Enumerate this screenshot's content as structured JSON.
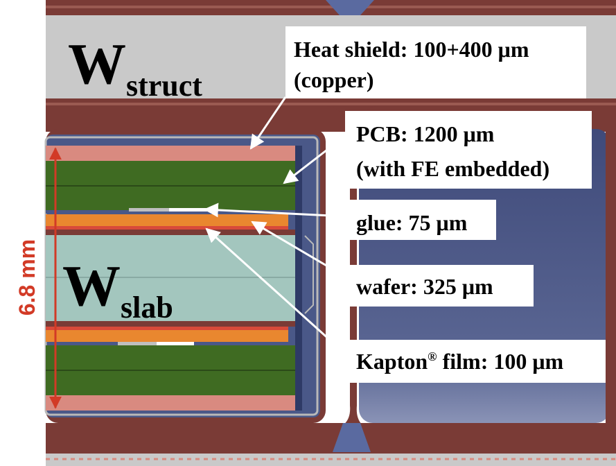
{
  "dimension": {
    "value": "6.8 mm"
  },
  "labels": {
    "w_struct_main": "W",
    "w_struct_sub": "struct",
    "w_slab_main": "W",
    "w_slab_sub": "slab"
  },
  "callouts": {
    "heat_shield_line1": "Heat shield: 100+400 μm",
    "heat_shield_line2": "(copper)",
    "pcb_line1": "PCB: 1200 μm",
    "pcb_line2": "(with FE embedded)",
    "glue": "glue: 75 μm",
    "wafer": "wafer: 325 μm",
    "kapton_name": "Kapton",
    "kapton_reg": "®",
    "kapton_rest": " film: 100 μm"
  },
  "colors": {
    "frame": "#7a3b36",
    "frame_light": "#9a5a52",
    "tungsten": "#c9c9c9",
    "copper": "#d98a80",
    "pcb": "#3f6b22",
    "glue": "#e9872f",
    "kapton": "#d84a3a",
    "wafer": "#a3c6be",
    "cavity": "#4d5a86",
    "dimension_arrow": "#d23a26"
  }
}
